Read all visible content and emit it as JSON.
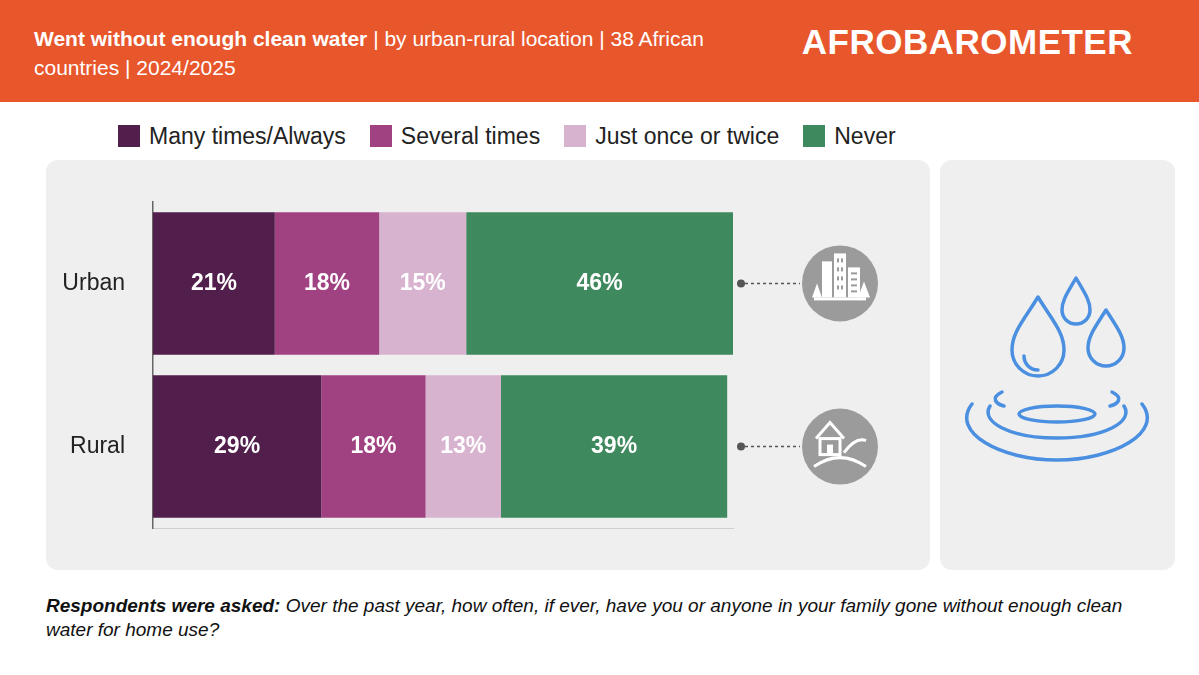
{
  "brand": "AFROBAROMETER",
  "question_label": "Respondents were asked:",
  "question": "Over the past year, how often, if ever, have you or anyone in your family gone without enough clean water for home use?",
  "chart_data": {
    "type": "bar",
    "title": "Went without enough clean water",
    "subtitle": "| by urban-rural location | 38 African countries | 2024/2025",
    "orientation": "horizontal",
    "stacked": true,
    "categories": [
      "Urban",
      "Rural"
    ],
    "series": [
      {
        "name": "Many times/Always",
        "color": "#521E4C",
        "values": [
          21,
          29
        ],
        "value_labels": [
          "21%",
          "29%"
        ]
      },
      {
        "name": "Several times",
        "color": "#A04282",
        "values": [
          18,
          18
        ],
        "value_labels": [
          "18%",
          "18%"
        ]
      },
      {
        "name": "Just once or twice",
        "color": "#D8B3CF",
        "values": [
          15,
          13
        ],
        "value_labels": [
          "15%",
          "13%"
        ]
      },
      {
        "name": "Never",
        "color": "#3E8A5E",
        "values": [
          46,
          39
        ],
        "value_labels": [
          "46%",
          "39%"
        ]
      }
    ],
    "xlim": [
      0,
      100
    ],
    "tick_labels": "y",
    "grid": false,
    "data_labels": true,
    "legend": "top"
  }
}
